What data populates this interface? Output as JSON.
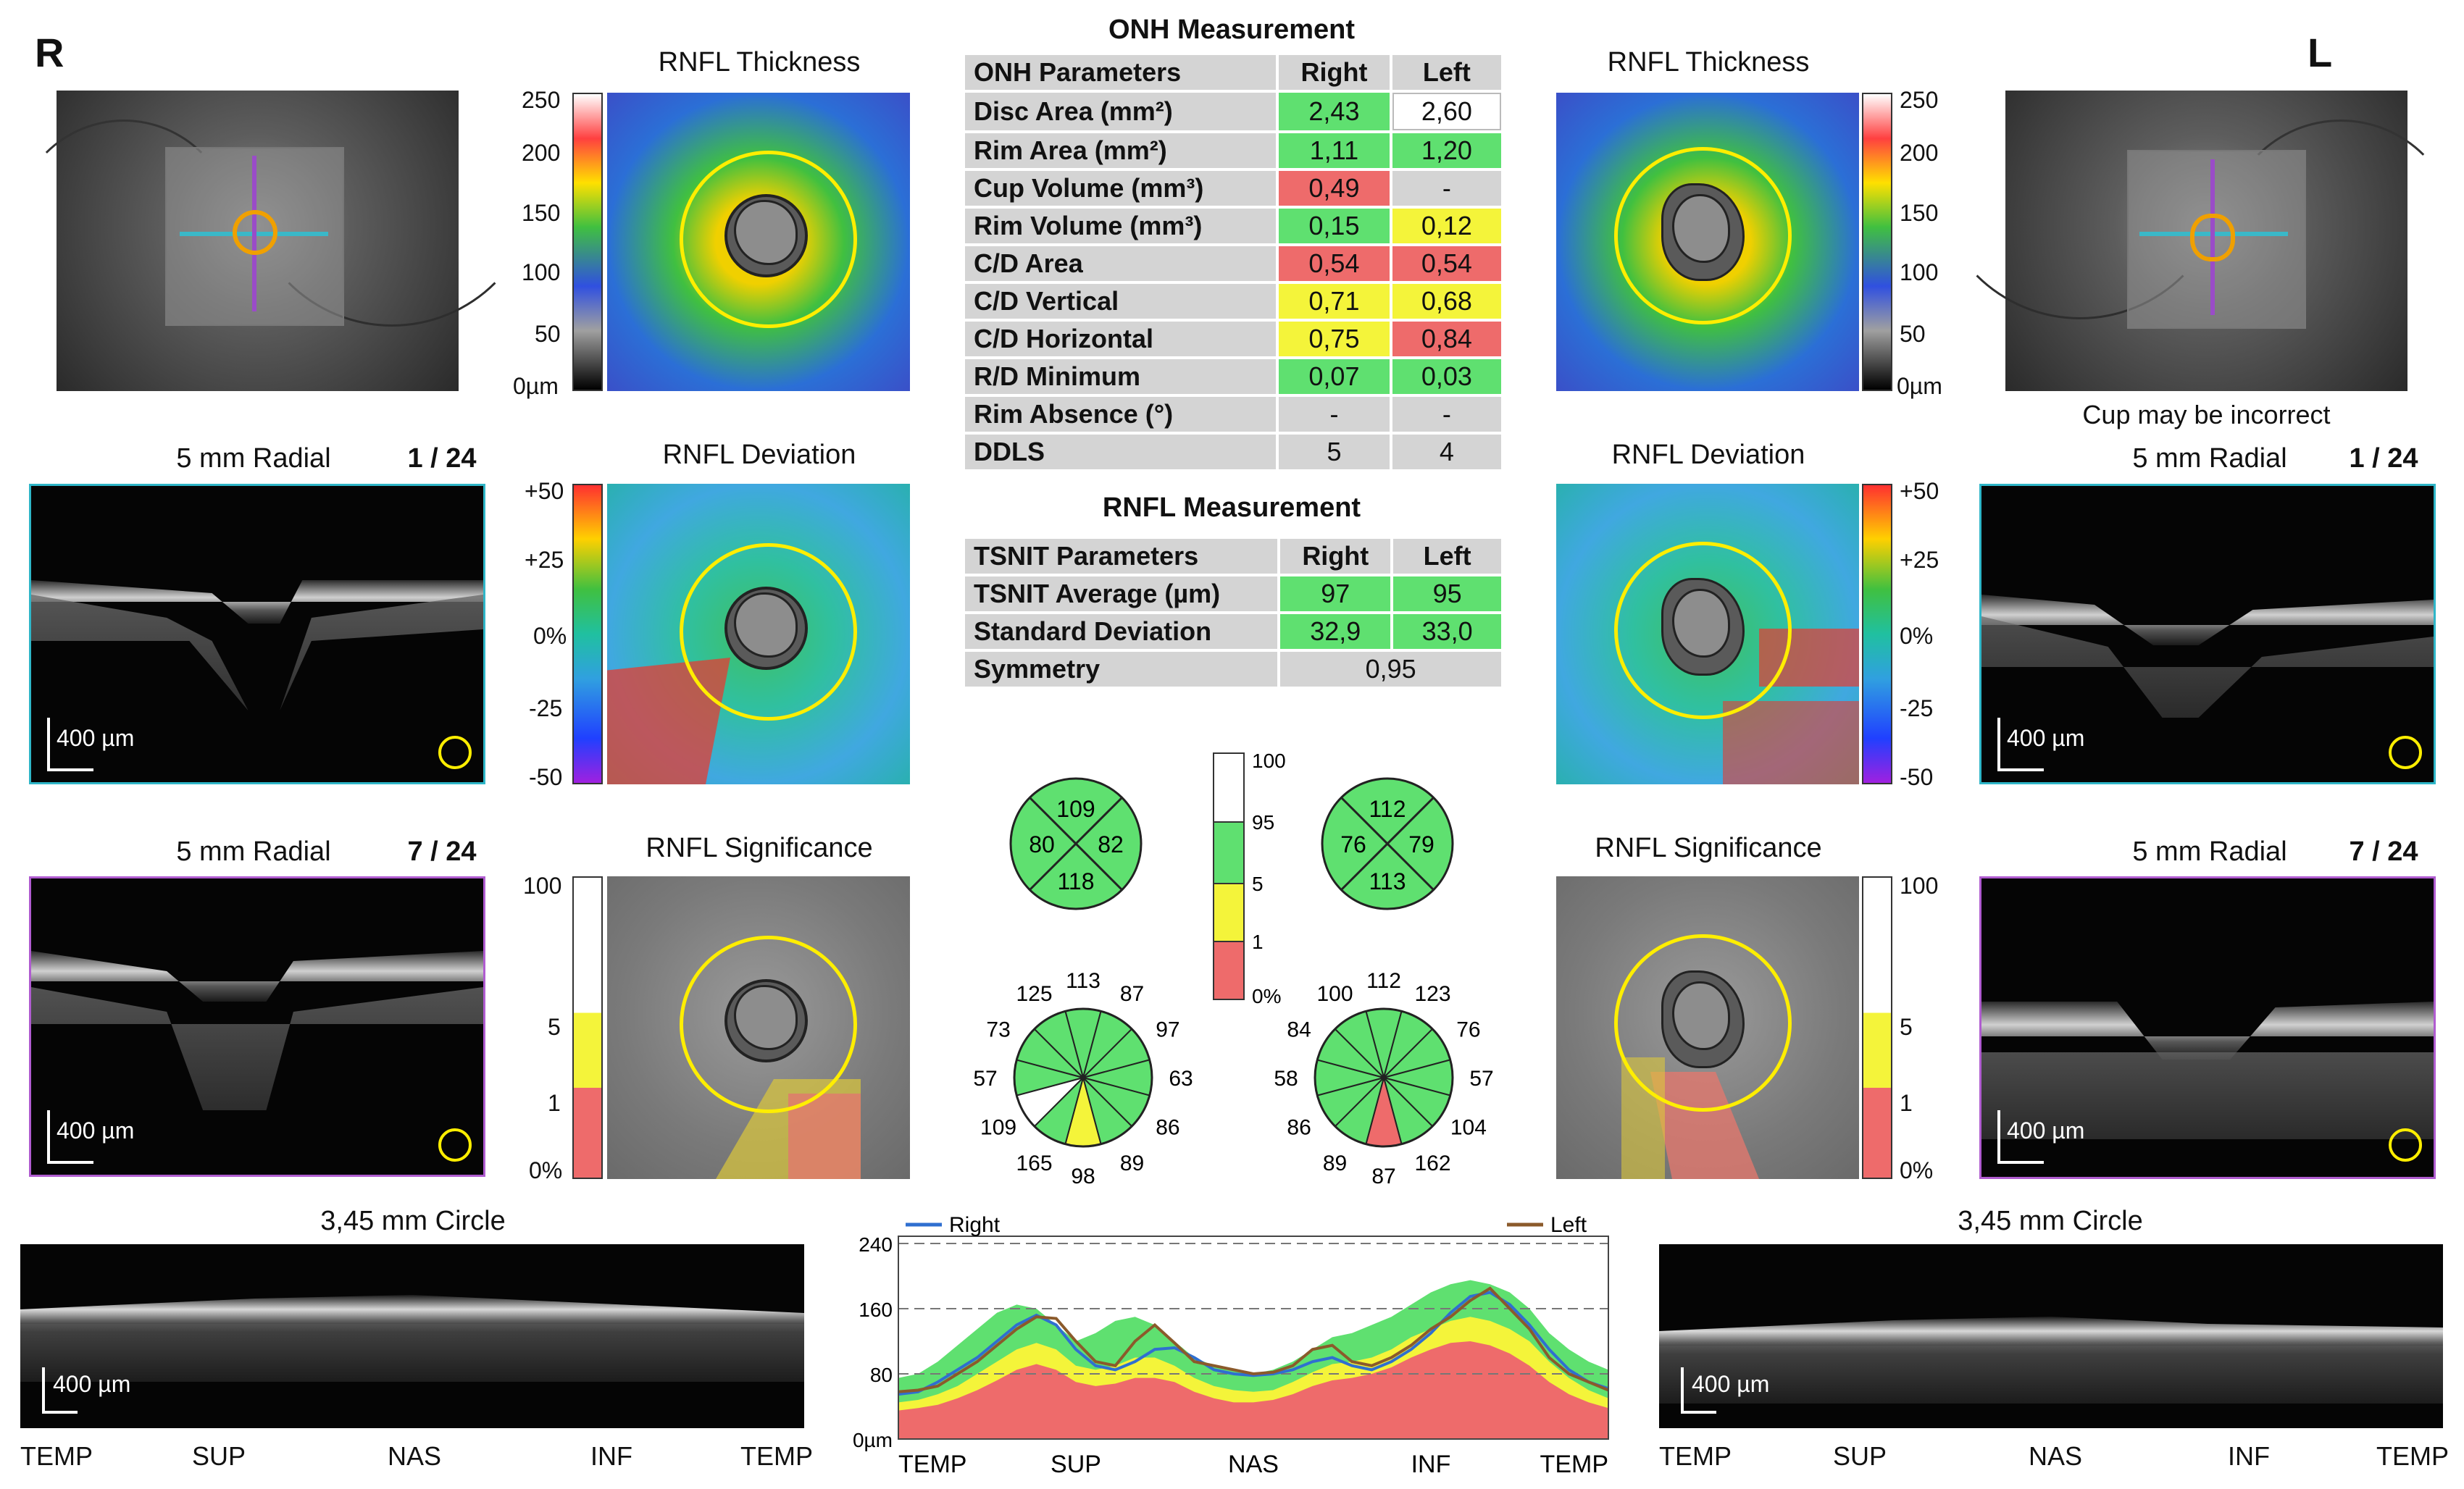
{
  "eyes": {
    "right_letter": "R",
    "left_letter": "L"
  },
  "panel_titles": {
    "rnfl_thickness": "RNFL Thickness",
    "rnfl_deviation": "RNFL Deviation",
    "rnfl_significance": "RNFL Significance",
    "radial": "5 mm Radial",
    "circle": "3,45 mm Circle"
  },
  "scan_index": {
    "right_top": "1 / 24",
    "right_bottom": "7 / 24",
    "left_top": "1 / 24",
    "left_bottom": "7 / 24"
  },
  "warning": "Cup may be incorrect",
  "scale_bar": "400 µm",
  "thickness_scale": [
    "250",
    "200",
    "150",
    "100",
    "50",
    "0µm"
  ],
  "deviation_scale": [
    "+50",
    "+25",
    "0%",
    "-25",
    "-50"
  ],
  "significance_scale": [
    "100",
    "5",
    "1",
    "0%"
  ],
  "center_scale": [
    "100",
    "95",
    "5",
    "1",
    "0%"
  ],
  "onh": {
    "title": "ONH Measurement",
    "headers": [
      "ONH Parameters",
      "Right",
      "Left"
    ],
    "rows": [
      {
        "label": "Disc Area (mm²)",
        "right": "2,43",
        "left": "2,60"
      },
      {
        "label": "Rim Area (mm²)",
        "right": "1,11",
        "left": "1,20"
      },
      {
        "label": "Cup Volume (mm³)",
        "right": "0,49",
        "left": "-"
      },
      {
        "label": "Rim Volume (mm³)",
        "right": "0,15",
        "left": "0,12"
      },
      {
        "label": "C/D Area",
        "right": "0,54",
        "left": "0,54"
      },
      {
        "label": "C/D Vertical",
        "right": "0,71",
        "left": "0,68"
      },
      {
        "label": "C/D Horizontal",
        "right": "0,75",
        "left": "0,84"
      },
      {
        "label": "R/D Minimum",
        "right": "0,07",
        "left": "0,03"
      },
      {
        "label": "Rim Absence (°)",
        "right": "-",
        "left": "-"
      },
      {
        "label": "DDLS",
        "right": "5",
        "left": "4"
      }
    ],
    "colors": [
      [
        "#5fe070",
        "#ffffff"
      ],
      [
        "#5fe070",
        "#5fe070"
      ],
      [
        "#ee6b6b",
        "#d4d4d4"
      ],
      [
        "#5fe070",
        "#f4f43a"
      ],
      [
        "#ee6b6b",
        "#ee6b6b"
      ],
      [
        "#f4f43a",
        "#f4f43a"
      ],
      [
        "#f4f43a",
        "#ee6b6b"
      ],
      [
        "#5fe070",
        "#5fe070"
      ],
      [
        "#d4d4d4",
        "#d4d4d4"
      ],
      [
        "#d4d4d4",
        "#d4d4d4"
      ]
    ]
  },
  "rnfl": {
    "title": "RNFL Measurement",
    "headers": [
      "TSNIT Parameters",
      "Right",
      "Left"
    ],
    "rows": [
      {
        "label": "TSNIT Average (µm)",
        "right": "97",
        "left": "95"
      },
      {
        "label": "Standard Deviation",
        "right": "32,9",
        "left": "33,0"
      }
    ],
    "symmetry_label": "Symmetry",
    "symmetry_value": "0,95"
  },
  "quadrants": {
    "right": {
      "top": "109",
      "left": "80",
      "right": "82",
      "bottom": "118"
    },
    "left": {
      "top": "112",
      "left": "76",
      "right": "79",
      "bottom": "113"
    }
  },
  "clock": {
    "right": [
      "113",
      "87",
      "97",
      "63",
      "86",
      "89",
      "98",
      "165",
      "109",
      "57",
      "73",
      "125"
    ],
    "left": [
      "112",
      "123",
      "76",
      "57",
      "104",
      "162",
      "87",
      "89",
      "86",
      "58",
      "84",
      "100"
    ],
    "right_colors": [
      "#5fe070",
      "#5fe070",
      "#5fe070",
      "#5fe070",
      "#5fe070",
      "#5fe070",
      "#f4f43a",
      "#5fe070",
      "#ffffff",
      "#5fe070",
      "#5fe070",
      "#5fe070"
    ],
    "left_colors": [
      "#5fe070",
      "#5fe070",
      "#5fe070",
      "#5fe070",
      "#5fe070",
      "#5fe070",
      "#ee6b6b",
      "#5fe070",
      "#5fe070",
      "#5fe070",
      "#5fe070",
      "#5fe070"
    ]
  },
  "sector_labels": [
    "TEMP",
    "SUP",
    "NAS",
    "INF",
    "TEMP"
  ],
  "chart_data": {
    "type": "line",
    "series": [
      {
        "name": "Right",
        "color": "#2f6fd0",
        "values": [
          55,
          58,
          70,
          85,
          100,
          120,
          140,
          152,
          140,
          110,
          90,
          85,
          95,
          110,
          112,
          100,
          85,
          80,
          78,
          80,
          85,
          95,
          100,
          90,
          85,
          95,
          110,
          130,
          155,
          175,
          180,
          165,
          140,
          110,
          85,
          70,
          62
        ]
      },
      {
        "name": "Left",
        "color": "#8b5a2b",
        "values": [
          58,
          60,
          65,
          80,
          95,
          115,
          135,
          150,
          148,
          120,
          95,
          90,
          120,
          140,
          118,
          95,
          90,
          85,
          80,
          82,
          90,
          110,
          115,
          95,
          90,
          100,
          115,
          135,
          150,
          170,
          185,
          160,
          135,
          100,
          80,
          70,
          60
        ]
      }
    ],
    "xlabel_ticks": [
      "TEMP",
      "SUP",
      "NAS",
      "INF",
      "TEMP"
    ],
    "yticks": [
      "0µm",
      "80",
      "160",
      "240"
    ],
    "ylim": [
      0,
      240
    ],
    "normative_bands": {
      "green_upper": [
        75,
        80,
        95,
        115,
        135,
        155,
        165,
        160,
        140,
        120,
        130,
        145,
        150,
        140,
        120,
        100,
        90,
        85,
        80,
        85,
        95,
        110,
        125,
        130,
        140,
        150,
        165,
        180,
        190,
        195,
        190,
        180,
        160,
        130,
        110,
        95,
        85
      ],
      "yellow_upper": [
        45,
        48,
        55,
        65,
        80,
        95,
        110,
        118,
        110,
        90,
        85,
        90,
        100,
        100,
        90,
        75,
        65,
        60,
        58,
        60,
        70,
        82,
        92,
        95,
        100,
        110,
        125,
        135,
        145,
        150,
        145,
        135,
        120,
        95,
        75,
        60,
        50
      ],
      "red_upper": [
        35,
        38,
        42,
        50,
        60,
        72,
        85,
        92,
        85,
        70,
        65,
        68,
        75,
        75,
        70,
        58,
        50,
        45,
        45,
        48,
        55,
        65,
        72,
        75,
        80,
        88,
        100,
        110,
        118,
        120,
        115,
        105,
        90,
        70,
        55,
        45,
        38
      ]
    }
  }
}
